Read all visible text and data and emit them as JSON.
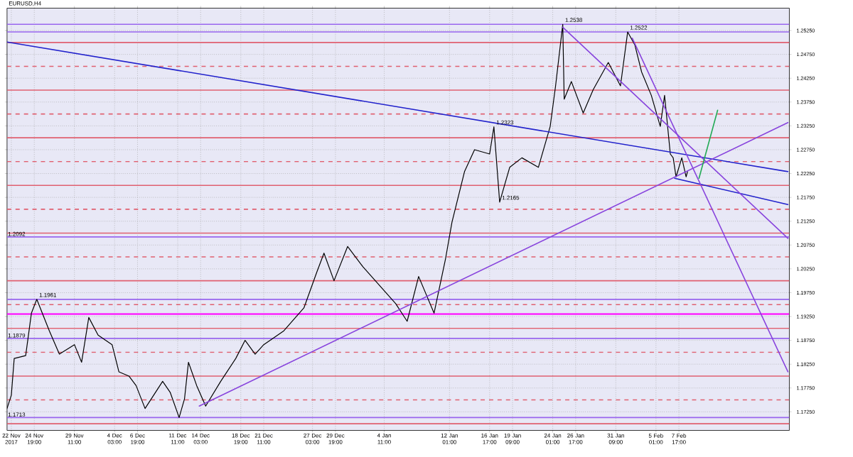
{
  "chart_data": {
    "type": "line",
    "title": "EURUSD,H4",
    "grid": true,
    "xlim": [
      "2017-11-21T15:00",
      "2018-02-20T13:00"
    ],
    "ylim": [
      1.1686,
      1.2572
    ],
    "xticks": [
      {
        "value": "2017-11-22T03:00",
        "label": "22 Nov 2017"
      },
      {
        "value": "2017-11-24T19:00",
        "label": "24 Nov 19:00"
      },
      {
        "value": "2017-11-29T11:00",
        "label": "29 Nov 11:00"
      },
      {
        "value": "2017-12-04T03:00",
        "label": "4 Dec 03:00"
      },
      {
        "value": "2017-12-06T19:00",
        "label": "6 Dec 19:00"
      },
      {
        "value": "2017-12-11T11:00",
        "label": "11 Dec 11:00"
      },
      {
        "value": "2017-12-14T03:00",
        "label": "14 Dec 03:00"
      },
      {
        "value": "2017-12-18T19:00",
        "label": "18 Dec 19:00"
      },
      {
        "value": "2017-12-21T11:00",
        "label": "21 Dec 11:00"
      },
      {
        "value": "2017-12-27T03:00",
        "label": "27 Dec 03:00"
      },
      {
        "value": "2017-12-29T19:00",
        "label": "29 Dec 19:00"
      },
      {
        "value": "2018-01-04T11:00",
        "label": "4 Jan 11:00"
      },
      {
        "value": "2018-01-12T01:00",
        "label": "12 Jan 01:00"
      },
      {
        "value": "2018-01-16T17:00",
        "label": "16 Jan 17:00"
      },
      {
        "value": "2018-01-19T09:00",
        "label": "19 Jan 09:00"
      },
      {
        "value": "2018-01-24T01:00",
        "label": "24 Jan 01:00"
      },
      {
        "value": "2018-01-26T17:00",
        "label": "26 Jan 17:00"
      },
      {
        "value": "2018-01-31T09:00",
        "label": "31 Jan 09:00"
      },
      {
        "value": "2018-02-05T01:00",
        "label": "5 Feb 01:00"
      },
      {
        "value": "2018-02-07T17:00",
        "label": "7 Feb 17:00"
      }
    ],
    "yticks": [
      {
        "value": 1.1725,
        "label": "1.17250"
      },
      {
        "value": 1.1775,
        "label": "1.17750"
      },
      {
        "value": 1.1825,
        "label": "1.18250"
      },
      {
        "value": 1.1875,
        "label": "1.18750"
      },
      {
        "value": 1.1925,
        "label": "1.19250"
      },
      {
        "value": 1.1975,
        "label": "1.19750"
      },
      {
        "value": 1.2025,
        "label": "1.20250"
      },
      {
        "value": 1.2075,
        "label": "1.20750"
      },
      {
        "value": 1.2125,
        "label": "1.21250"
      },
      {
        "value": 1.2175,
        "label": "1.21750"
      },
      {
        "value": 1.2225,
        "label": "1.22250"
      },
      {
        "value": 1.2275,
        "label": "1.22750"
      },
      {
        "value": 1.2325,
        "label": "1.23250"
      },
      {
        "value": 1.2375,
        "label": "1.23750"
      },
      {
        "value": 1.2425,
        "label": "1.24250"
      },
      {
        "value": 1.2475,
        "label": "1.24750"
      },
      {
        "value": 1.2525,
        "label": "1.25250"
      }
    ],
    "series": [
      {
        "color": "#000000",
        "x": [
          "2017-11-21T15:00",
          "2017-11-22T03:00",
          "2017-11-22T11:00",
          "2017-11-23T19:00",
          "2017-11-24T11:00",
          "2017-11-25T02:00",
          "2017-11-26T13:00",
          "2017-11-27T17:00",
          "2017-11-29T11:00",
          "2017-11-30T07:00",
          "2017-12-01T03:00",
          "2017-12-02T05:00",
          "2017-12-03T20:00",
          "2017-12-04T15:00",
          "2017-12-05T19:00",
          "2017-12-06T15:00",
          "2017-12-07T16:00",
          "2017-12-09T17:00",
          "2017-12-10T14:00",
          "2017-12-11T15:00",
          "2017-12-12T06:00",
          "2017-12-12T17:00",
          "2017-12-13T16:00",
          "2017-12-14T17:00",
          "2017-12-16T11:00",
          "2017-12-18T05:00",
          "2017-12-19T07:00",
          "2017-12-20T11:00",
          "2017-12-21T11:00",
          "2017-12-23T19:00",
          "2017-12-26T03:00",
          "2017-12-27T15:00",
          "2017-12-28T11:00",
          "2017-12-29T15:00",
          "2017-12-31T05:00",
          "2018-01-02T00:00",
          "2018-01-05T19:00",
          "2018-01-07T03:00",
          "2018-01-08T11:00",
          "2018-01-10T06:00",
          "2018-01-11T14:00",
          "2018-01-12T08:00",
          "2018-01-13T19:00",
          "2018-01-14T23:00",
          "2018-01-16T17:00",
          "2018-01-17T05:00",
          "2018-01-17T21:00",
          "2018-01-19T01:00",
          "2018-01-20T11:00",
          "2018-01-22T09:00",
          "2018-01-23T18:00",
          "2018-01-24T09:00",
          "2018-01-25T05:00",
          "2018-01-25T09:00",
          "2018-01-26T05:00",
          "2018-01-27T14:00",
          "2018-01-28T18:00",
          "2018-01-30T12:00",
          "2018-01-31T22:00",
          "2018-02-01T18:00",
          "2018-02-02T14:00",
          "2018-02-03T09:00",
          "2018-02-04T12:00",
          "2018-02-05T13:00",
          "2018-02-06T01:00",
          "2018-02-06T17:00",
          "2018-02-07T01:00",
          "2018-02-07T09:00",
          "2018-02-08T01:00",
          "2018-02-08T13:00",
          "2018-02-08T17:00"
        ],
        "values": [
          1.1732,
          1.176,
          1.1837,
          1.1843,
          1.1932,
          1.1961,
          1.1895,
          1.1846,
          1.1866,
          1.1829,
          1.1923,
          1.1886,
          1.1866,
          1.1809,
          1.18,
          1.178,
          1.1732,
          1.1789,
          1.1766,
          1.1713,
          1.1752,
          1.1829,
          1.178,
          1.1737,
          1.1789,
          1.1837,
          1.1875,
          1.1846,
          1.1866,
          1.1895,
          1.1943,
          1.2018,
          1.2058,
          1.2,
          1.2072,
          1.2029,
          1.1952,
          1.1915,
          1.2009,
          1.1932,
          1.2046,
          1.2123,
          1.2229,
          1.2275,
          1.2266,
          1.2323,
          1.2165,
          1.2238,
          1.2258,
          1.2238,
          1.2324,
          1.2409,
          1.2538,
          1.2381,
          1.2418,
          1.2352,
          1.2401,
          1.2458,
          1.2409,
          1.2522,
          1.2495,
          1.2438,
          1.2389,
          1.2324,
          1.2389,
          1.2266,
          1.2258,
          1.2218,
          1.2258,
          1.2218,
          1.2229
        ]
      },
      {
        "color": "#2222cc",
        "x": [
          "2017-11-21T15:00",
          "2018-02-20T09:00"
        ],
        "values": [
          1.2501,
          1.2229
        ]
      },
      {
        "color": "#2222cc",
        "x": [
          "2018-02-07T05:00",
          "2018-02-20T09:00"
        ],
        "values": [
          1.2215,
          1.216
        ]
      },
      {
        "color": "#8844dd",
        "x": [
          "2017-12-13T23:00",
          "2018-02-20T09:00"
        ],
        "values": [
          1.1737,
          1.2332
        ]
      },
      {
        "color": "#8844dd",
        "x": [
          "2018-01-25T05:00",
          "2018-02-20T09:00"
        ],
        "values": [
          1.2532,
          1.2089
        ]
      },
      {
        "color": "#8844dd",
        "x": [
          "2018-02-02T07:00",
          "2018-02-20T09:00"
        ],
        "values": [
          1.2509,
          1.1809
        ]
      },
      {
        "color": "#22aa55",
        "x": [
          "2018-02-10T01:00",
          "2018-02-12T05:00"
        ],
        "values": [
          1.2215,
          1.2358
        ]
      }
    ],
    "ref_lines": [
      {
        "axis": "y",
        "value": 1.25,
        "color": "#e06070"
      },
      {
        "axis": "y",
        "value": 1.245,
        "color": "#e06070",
        "line_style": "dashed"
      },
      {
        "axis": "y",
        "value": 1.24,
        "color": "#e06070"
      },
      {
        "axis": "y",
        "value": 1.235,
        "color": "#e06070",
        "line_style": "dashed"
      },
      {
        "axis": "y",
        "value": 1.23,
        "color": "#e06070"
      },
      {
        "axis": "y",
        "value": 1.225,
        "color": "#e06070",
        "line_style": "dashed"
      },
      {
        "axis": "y",
        "value": 1.22,
        "color": "#e06070"
      },
      {
        "axis": "y",
        "value": 1.215,
        "color": "#e06070",
        "line_style": "dashed"
      },
      {
        "axis": "y",
        "value": 1.21,
        "color": "#e06070"
      },
      {
        "axis": "y",
        "value": 1.205,
        "color": "#e06070",
        "line_style": "dashed"
      },
      {
        "axis": "y",
        "value": 1.2,
        "color": "#e06070"
      },
      {
        "axis": "y",
        "value": 1.195,
        "color": "#e06070",
        "line_style": "dashed"
      },
      {
        "axis": "y",
        "value": 1.19,
        "color": "#e06070"
      },
      {
        "axis": "y",
        "value": 1.185,
        "color": "#e06070",
        "line_style": "dashed"
      },
      {
        "axis": "y",
        "value": 1.18,
        "color": "#e06070"
      },
      {
        "axis": "y",
        "value": 1.175,
        "color": "#e06070",
        "line_style": "dashed"
      },
      {
        "axis": "y",
        "value": 1.17,
        "color": "#e06070"
      },
      {
        "axis": "y",
        "value": 1.193,
        "color": "#ff00ff"
      },
      {
        "axis": "y",
        "value": 1.2538,
        "color": "#9966ee"
      },
      {
        "axis": "y",
        "value": 1.2522,
        "color": "#9966ee"
      },
      {
        "axis": "y",
        "value": 1.2092,
        "color": "#9966ee",
        "label": "1.2092"
      },
      {
        "axis": "y",
        "value": 1.1961,
        "color": "#9966ee"
      },
      {
        "axis": "y",
        "value": 1.1879,
        "color": "#9966ee",
        "label": "1.1879"
      },
      {
        "axis": "y",
        "value": 1.1713,
        "color": "#9966ee",
        "label": "1.1713"
      }
    ],
    "annotations": [
      {
        "text": "1.2538",
        "x": "2018-01-25T05:00",
        "y": 1.2538
      },
      {
        "text": "1.2522",
        "x": "2018-02-01T18:00",
        "y": 1.2522
      },
      {
        "text": "1.2323",
        "x": "2018-01-17T05:00",
        "y": 1.2323
      },
      {
        "text": "1.2165",
        "x": "2018-01-17T21:00",
        "y": 1.2165
      },
      {
        "text": "1.1961",
        "x": "2017-11-25T02:00",
        "y": 1.1961
      }
    ]
  }
}
